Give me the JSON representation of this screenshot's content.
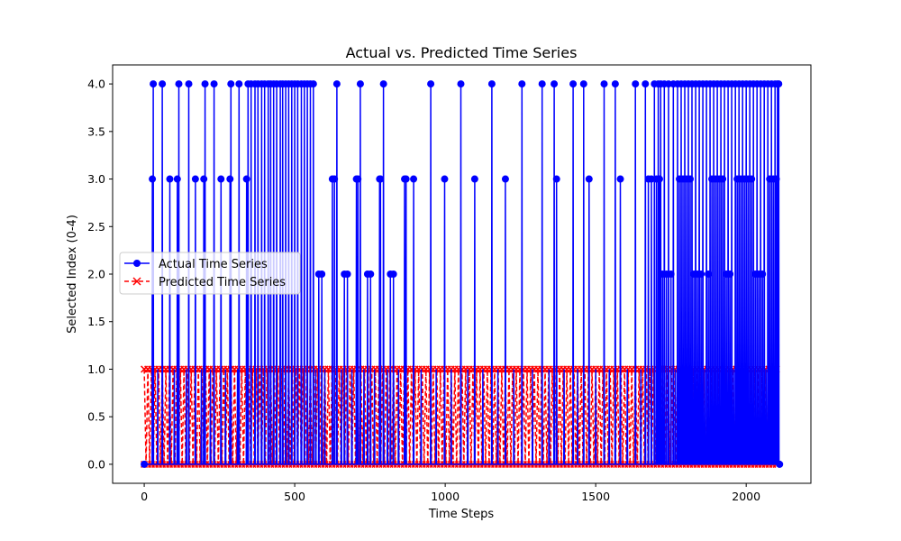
{
  "chart_data": {
    "type": "line",
    "title": "Actual vs. Predicted Time Series",
    "xlabel": "Time Steps",
    "ylabel": "Selected Index (0-4)",
    "xlim": [
      -105,
      2215
    ],
    "ylim": [
      -0.2,
      4.2
    ],
    "xticks": [
      0,
      500,
      1000,
      1500,
      2000
    ],
    "yticks": [
      0.0,
      0.5,
      1.0,
      1.5,
      2.0,
      2.5,
      3.0,
      3.5,
      4.0
    ],
    "ytick_labels": [
      "0.0",
      "0.5",
      "1.0",
      "1.5",
      "2.0",
      "2.5",
      "3.0",
      "3.5",
      "4.0"
    ],
    "x_count": 2112,
    "grid": false,
    "legend": {
      "position": "center-left"
    },
    "series": [
      {
        "name": "Actual Time Series",
        "color": "#0000ff",
        "marker": "circle",
        "linestyle": "solid",
        "spikes": [
          [
            27,
            3
          ],
          [
            30,
            4
          ],
          [
            45,
            1
          ],
          [
            60,
            4
          ],
          [
            85,
            3
          ],
          [
            100,
            1
          ],
          [
            110,
            3
          ],
          [
            115,
            4
          ],
          [
            140,
            1
          ],
          [
            148,
            4
          ],
          [
            170,
            3
          ],
          [
            190,
            1
          ],
          [
            198,
            3
          ],
          [
            202,
            4
          ],
          [
            220,
            1
          ],
          [
            232,
            4
          ],
          [
            255,
            3
          ],
          [
            270,
            1
          ],
          [
            285,
            3
          ],
          [
            288,
            4
          ],
          [
            310,
            1
          ],
          [
            315,
            4
          ],
          [
            340,
            3
          ],
          [
            345,
            4
          ],
          [
            355,
            4
          ],
          [
            368,
            4
          ],
          [
            378,
            4
          ],
          [
            390,
            4
          ],
          [
            400,
            4
          ],
          [
            412,
            4
          ],
          [
            420,
            4
          ],
          [
            430,
            4
          ],
          [
            440,
            4
          ],
          [
            452,
            4
          ],
          [
            460,
            4
          ],
          [
            470,
            4
          ],
          [
            480,
            4
          ],
          [
            490,
            4
          ],
          [
            500,
            4
          ],
          [
            510,
            4
          ],
          [
            522,
            4
          ],
          [
            532,
            4
          ],
          [
            542,
            4
          ],
          [
            552,
            4
          ],
          [
            562,
            4
          ],
          [
            570,
            1
          ],
          [
            580,
            2
          ],
          [
            590,
            2
          ],
          [
            600,
            1
          ],
          [
            625,
            3
          ],
          [
            632,
            3
          ],
          [
            640,
            4
          ],
          [
            655,
            1
          ],
          [
            665,
            2
          ],
          [
            675,
            2
          ],
          [
            690,
            1
          ],
          [
            705,
            3
          ],
          [
            710,
            3
          ],
          [
            718,
            4
          ],
          [
            730,
            1
          ],
          [
            742,
            2
          ],
          [
            752,
            2
          ],
          [
            765,
            1
          ],
          [
            782,
            3
          ],
          [
            785,
            3
          ],
          [
            795,
            4
          ],
          [
            808,
            1
          ],
          [
            818,
            2
          ],
          [
            828,
            2
          ],
          [
            845,
            1
          ],
          [
            865,
            3
          ],
          [
            870,
            3
          ],
          [
            895,
            3
          ],
          [
            920,
            1
          ],
          [
            952,
            4
          ],
          [
            970,
            1
          ],
          [
            998,
            3
          ],
          [
            1020,
            1
          ],
          [
            1052,
            4
          ],
          [
            1075,
            1
          ],
          [
            1098,
            3
          ],
          [
            1125,
            1
          ],
          [
            1155,
            4
          ],
          [
            1175,
            1
          ],
          [
            1200,
            3
          ],
          [
            1228,
            1
          ],
          [
            1255,
            4
          ],
          [
            1290,
            1
          ],
          [
            1322,
            4
          ],
          [
            1345,
            1
          ],
          [
            1362,
            4
          ],
          [
            1370,
            3
          ],
          [
            1395,
            1
          ],
          [
            1425,
            4
          ],
          [
            1440,
            1
          ],
          [
            1460,
            4
          ],
          [
            1478,
            3
          ],
          [
            1500,
            1
          ],
          [
            1528,
            4
          ],
          [
            1545,
            1
          ],
          [
            1565,
            4
          ],
          [
            1582,
            3
          ],
          [
            1605,
            1
          ],
          [
            1632,
            4
          ],
          [
            1650,
            1
          ],
          [
            1665,
            4
          ],
          [
            1675,
            3
          ],
          [
            1685,
            3
          ],
          [
            1695,
            4
          ],
          [
            1702,
            3
          ],
          [
            1708,
            4
          ],
          [
            1712,
            3
          ],
          [
            1716,
            4
          ],
          [
            1722,
            2
          ],
          [
            1728,
            4
          ],
          [
            1735,
            2
          ],
          [
            1742,
            4
          ],
          [
            1750,
            2
          ],
          [
            1758,
            4
          ],
          [
            1765,
            1
          ],
          [
            1772,
            4
          ],
          [
            1778,
            3
          ],
          [
            1784,
            4
          ],
          [
            1790,
            3
          ],
          [
            1796,
            4
          ],
          [
            1802,
            3
          ],
          [
            1808,
            4
          ],
          [
            1814,
            3
          ],
          [
            1820,
            4
          ],
          [
            1826,
            2
          ],
          [
            1832,
            4
          ],
          [
            1838,
            2
          ],
          [
            1844,
            4
          ],
          [
            1850,
            2
          ],
          [
            1856,
            4
          ],
          [
            1862,
            1
          ],
          [
            1868,
            4
          ],
          [
            1874,
            2
          ],
          [
            1880,
            4
          ],
          [
            1886,
            3
          ],
          [
            1892,
            4
          ],
          [
            1898,
            3
          ],
          [
            1904,
            4
          ],
          [
            1910,
            3
          ],
          [
            1916,
            4
          ],
          [
            1922,
            3
          ],
          [
            1928,
            4
          ],
          [
            1934,
            2
          ],
          [
            1940,
            4
          ],
          [
            1946,
            2
          ],
          [
            1952,
            4
          ],
          [
            1958,
            1
          ],
          [
            1964,
            4
          ],
          [
            1970,
            3
          ],
          [
            1976,
            4
          ],
          [
            1982,
            3
          ],
          [
            1988,
            4
          ],
          [
            1994,
            3
          ],
          [
            2000,
            4
          ],
          [
            2006,
            3
          ],
          [
            2012,
            4
          ],
          [
            2018,
            3
          ],
          [
            2024,
            4
          ],
          [
            2030,
            2
          ],
          [
            2036,
            4
          ],
          [
            2042,
            2
          ],
          [
            2048,
            4
          ],
          [
            2054,
            2
          ],
          [
            2060,
            4
          ],
          [
            2066,
            1
          ],
          [
            2072,
            4
          ],
          [
            2078,
            3
          ],
          [
            2084,
            4
          ],
          [
            2090,
            3
          ],
          [
            2096,
            4
          ],
          [
            2100,
            3
          ],
          [
            2104,
            4
          ],
          [
            2108,
            4
          ]
        ],
        "end_values": [
          [
            0,
            0
          ],
          [
            2111,
            0
          ]
        ]
      },
      {
        "name": "Predicted Time Series",
        "color": "#ff0000",
        "marker": "x",
        "linestyle": "dashed",
        "values_range": [
          0,
          1
        ],
        "end_values": [
          [
            0,
            1
          ],
          [
            2111,
            1
          ]
        ]
      }
    ]
  }
}
